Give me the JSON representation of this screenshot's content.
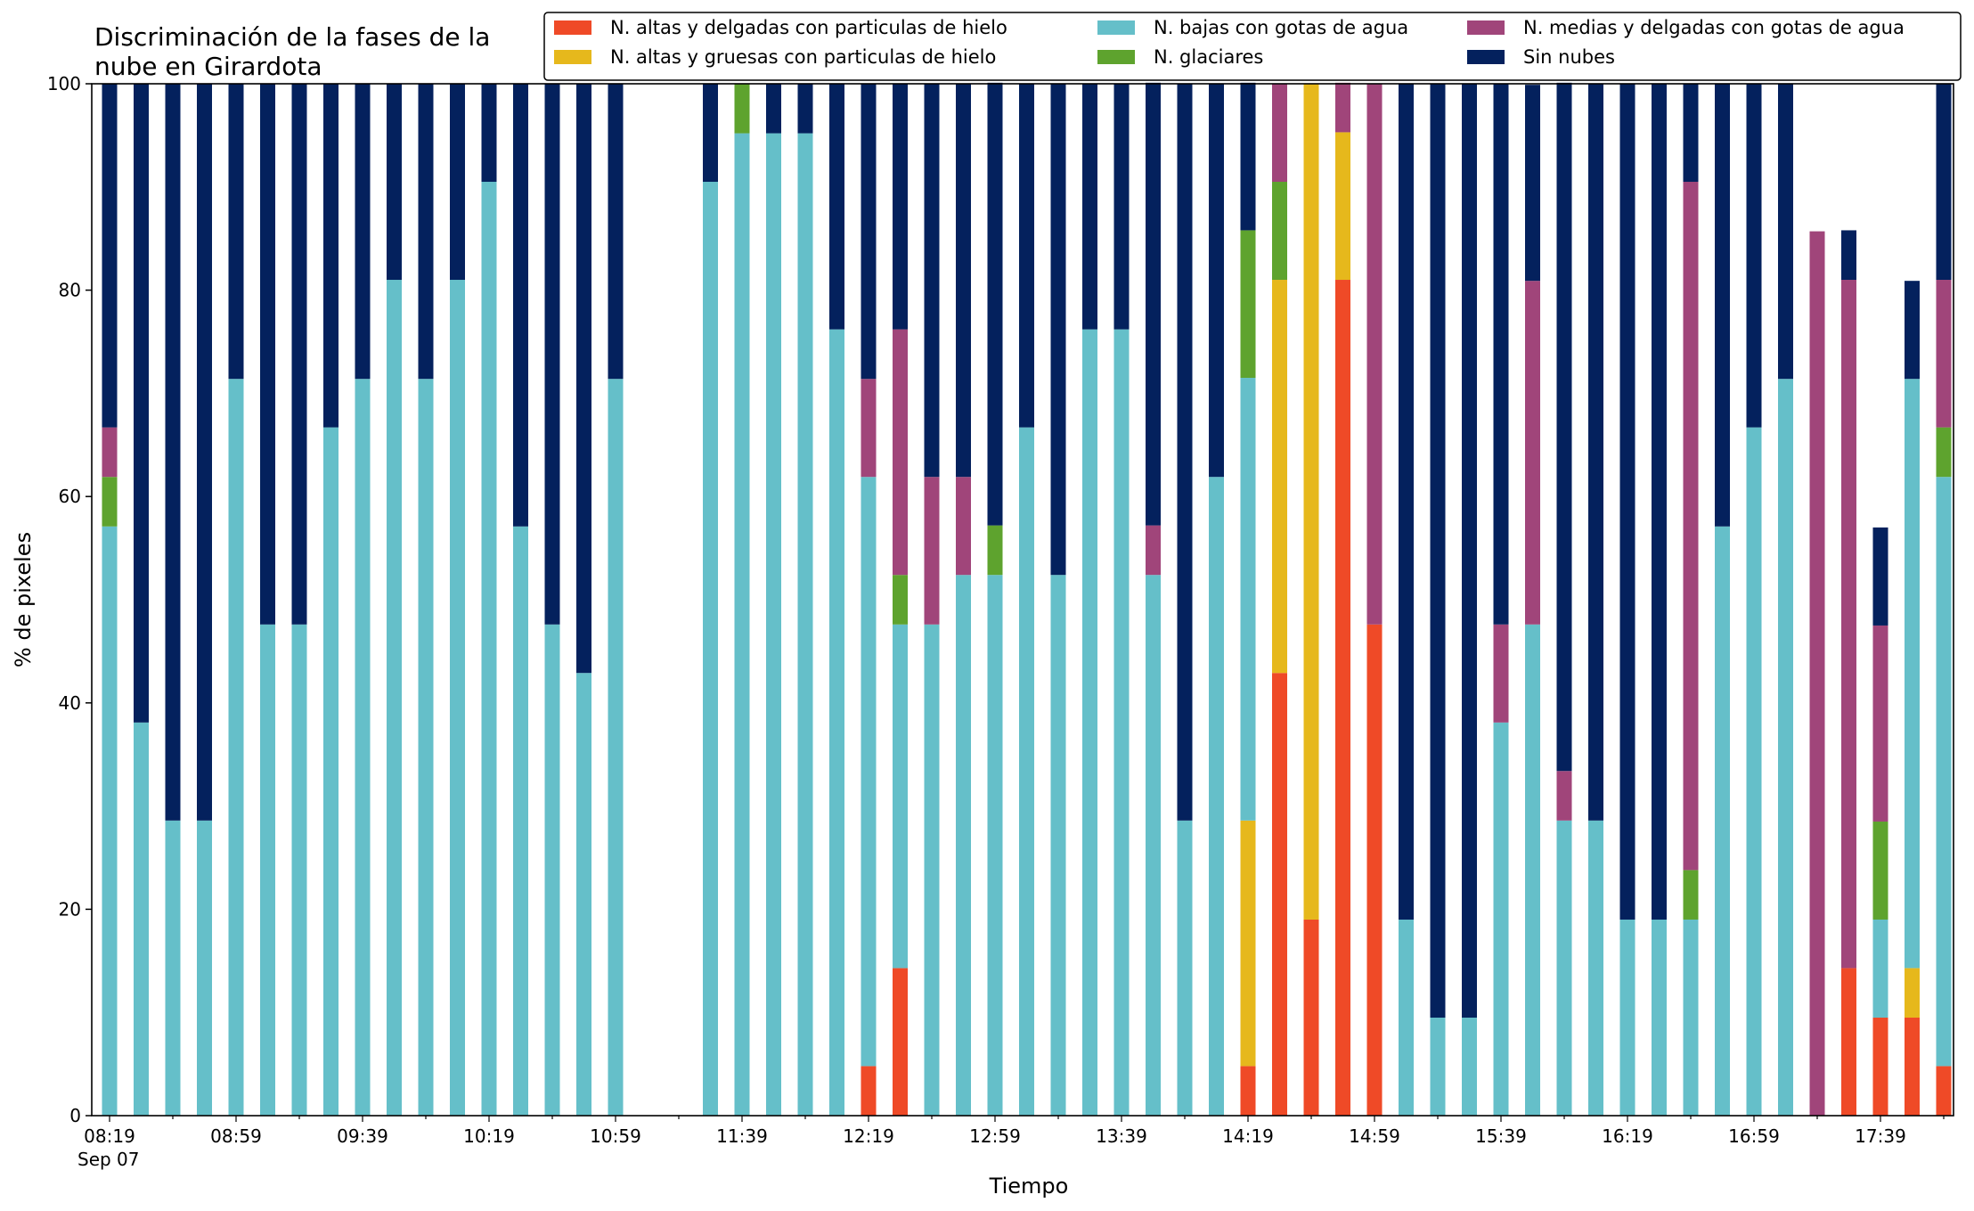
{
  "chart_data": {
    "type": "bar",
    "stacked": true,
    "title_lines": [
      "Discriminación de la fases de la",
      "nube en Girardota"
    ],
    "xlabel": "Tiempo",
    "ylabel": "% de pixeles",
    "ylim": [
      0,
      100
    ],
    "yticks": [
      0,
      20,
      40,
      60,
      80,
      100
    ],
    "x_start": "08:19",
    "x_step_minutes": 10,
    "x_tick_every": 4,
    "xtick_labels": [
      "08:19",
      "08:59",
      "09:39",
      "10:19",
      "10:59",
      "11:39",
      "12:19",
      "12:59",
      "13:39",
      "14:19",
      "14:59",
      "15:39",
      "16:19",
      "16:59",
      "17:39"
    ],
    "xtick_date_label": "Sep 07",
    "grid": false,
    "legend_position": "top-right",
    "legend_columns": 3,
    "series": [
      {
        "name": "N. altas y delgadas con particulas de hielo",
        "color": "#ef4a27",
        "values": [
          0,
          0,
          0,
          0,
          0,
          0,
          0,
          0,
          0,
          0,
          0,
          0,
          0,
          0,
          0,
          0,
          0,
          0,
          0,
          0,
          0,
          0,
          0,
          0,
          4.8,
          14.3,
          0,
          0,
          0,
          0,
          0,
          0,
          0,
          0,
          0,
          0,
          4.8,
          42.9,
          19.0,
          81.0,
          47.6,
          0,
          0,
          0,
          0,
          0,
          0,
          0,
          0,
          0,
          0,
          0,
          0,
          0,
          0,
          14.3,
          9.5,
          9.5,
          4.8
        ]
      },
      {
        "name": "N. altas y gruesas con particulas de hielo",
        "color": "#e6b81c",
        "values": [
          0,
          0,
          0,
          0,
          0,
          0,
          0,
          0,
          0,
          0,
          0,
          0,
          0,
          0,
          0,
          0,
          0,
          0,
          0,
          0,
          0,
          0,
          0,
          0,
          0,
          0,
          0,
          0,
          0,
          0,
          0,
          0,
          0,
          0,
          0,
          0,
          23.8,
          38.1,
          81.0,
          14.3,
          0,
          0,
          0,
          0,
          0,
          0,
          0,
          0,
          0,
          0,
          0,
          0,
          0,
          0,
          0,
          0,
          0,
          4.8,
          0
        ]
      },
      {
        "name": "N. bajas con gotas de agua",
        "color": "#65bfc9",
        "values": [
          57.1,
          38.1,
          28.6,
          28.6,
          71.4,
          47.6,
          47.6,
          66.7,
          71.4,
          81.0,
          71.4,
          81.0,
          90.5,
          57.1,
          47.6,
          42.9,
          71.4,
          0,
          0,
          90.5,
          95.2,
          95.2,
          95.2,
          76.2,
          57.1,
          33.3,
          47.6,
          52.4,
          52.4,
          66.7,
          52.4,
          76.2,
          76.2,
          52.4,
          28.6,
          61.9,
          42.9,
          0,
          0,
          0,
          0,
          19.0,
          9.5,
          9.5,
          38.1,
          47.6,
          28.6,
          28.6,
          19.0,
          19.0,
          19.0,
          57.1,
          66.7,
          71.4,
          0,
          0,
          9.5,
          57.1,
          57.1
        ]
      },
      {
        "name": "N. glaciares",
        "color": "#5ea32e",
        "values": [
          4.8,
          0,
          0,
          0,
          0,
          0,
          0,
          0,
          0,
          0,
          0,
          0,
          0,
          0,
          0,
          0,
          0,
          0,
          0,
          0,
          4.8,
          0,
          0,
          0,
          0,
          4.8,
          0,
          0,
          4.8,
          0,
          0,
          0,
          0,
          0,
          0,
          0,
          14.3,
          9.5,
          0,
          0,
          0,
          0,
          0,
          0,
          0,
          0,
          0,
          0,
          0,
          0,
          4.8,
          0,
          0,
          0,
          0,
          0,
          9.5,
          0,
          4.8
        ]
      },
      {
        "name": "N. medias y delgadas con gotas de agua",
        "color": "#a0457a",
        "values": [
          4.8,
          0,
          0,
          0,
          0,
          0,
          0,
          0,
          0,
          0,
          0,
          0,
          0,
          0,
          0,
          0,
          0,
          0,
          0,
          0,
          0,
          0,
          0,
          0,
          9.5,
          23.8,
          14.3,
          9.5,
          0,
          0,
          0,
          0,
          0,
          4.8,
          0,
          0,
          0,
          9.5,
          0,
          4.8,
          52.4,
          0,
          0,
          0,
          9.5,
          33.3,
          4.8,
          0,
          0,
          0,
          66.7,
          0,
          0,
          0,
          85.7,
          66.7,
          19.0,
          0,
          14.3
        ]
      },
      {
        "name": "Sin nubes",
        "color": "#04215d",
        "values": [
          33.3,
          61.9,
          71.4,
          71.4,
          28.6,
          52.4,
          52.4,
          33.3,
          28.6,
          19.0,
          28.6,
          19.0,
          9.5,
          42.9,
          52.4,
          57.1,
          28.6,
          0,
          0,
          9.5,
          0,
          4.8,
          4.8,
          23.8,
          28.6,
          23.8,
          38.1,
          38.1,
          42.9,
          33.3,
          47.6,
          23.8,
          23.8,
          42.9,
          71.4,
          38.1,
          14.3,
          0,
          0,
          0,
          0,
          81.0,
          90.5,
          90.5,
          52.4,
          19.0,
          66.7,
          71.4,
          81.0,
          81.0,
          9.5,
          42.9,
          33.3,
          28.6,
          0,
          4.8,
          9.5,
          9.5,
          19.0
        ]
      }
    ]
  }
}
